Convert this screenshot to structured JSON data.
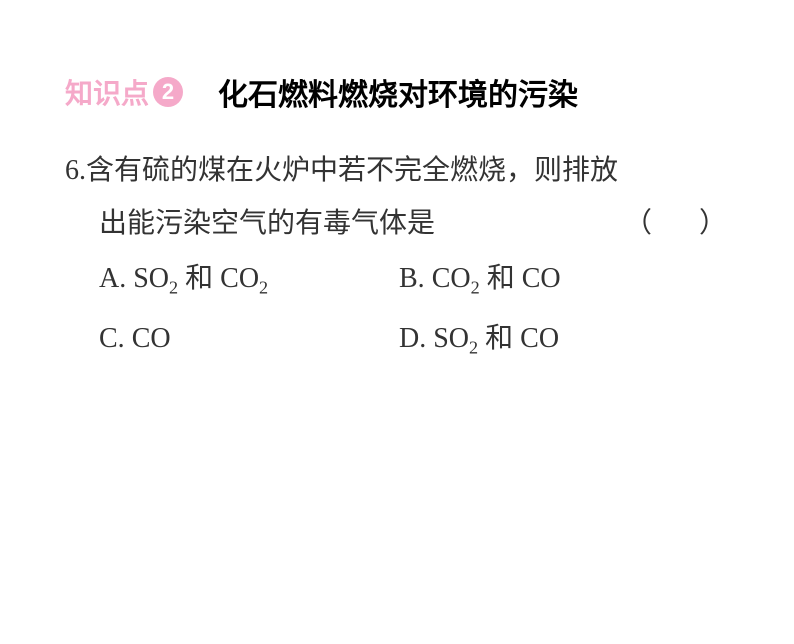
{
  "header": {
    "knowledge_label": "知识点",
    "knowledge_number": "2",
    "title": "化石燃料燃烧对环境的污染"
  },
  "question": {
    "number": "6.",
    "text_line1": "含有硫的煤在火炉中若不完全燃烧，则排放",
    "text_line2": "出能污染空气的有毒气体是",
    "paren_open": "（",
    "paren_close": "）",
    "options": {
      "a_label": "A.",
      "a_chem1": "SO",
      "a_sub1": "2",
      "a_and": " 和 ",
      "a_chem2": "CO",
      "a_sub2": "2",
      "b_label": "B.",
      "b_chem1": "CO",
      "b_sub1": "2",
      "b_and": " 和 ",
      "b_chem2": "CO",
      "c_label": "C.",
      "c_chem1": "CO",
      "d_label": "D.",
      "d_chem1": "SO",
      "d_sub1": "2",
      "d_and": " 和 ",
      "d_chem2": "CO"
    }
  },
  "colors": {
    "pink": "#f5a9c9",
    "text": "#333333",
    "background": "#ffffff"
  }
}
